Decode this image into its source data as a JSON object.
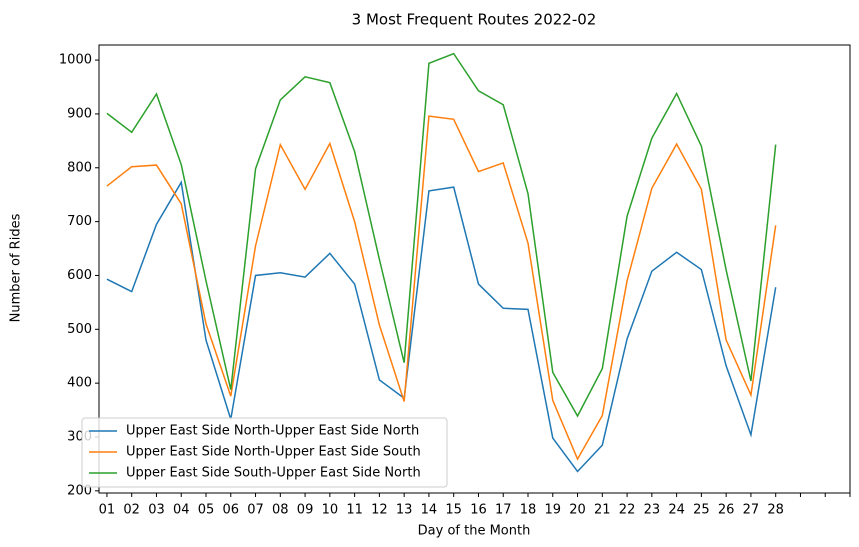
{
  "chart_data": {
    "type": "line",
    "title": "3 Most Frequent Routes 2022-02",
    "x_label": "Day of the Month",
    "y_label": "Number of Rides",
    "categories": [
      "01",
      "02",
      "03",
      "04",
      "05",
      "06",
      "07",
      "08",
      "09",
      "10",
      "11",
      "12",
      "13",
      "14",
      "15",
      "16",
      "17",
      "18",
      "19",
      "20",
      "21",
      "22",
      "23",
      "24",
      "25",
      "26",
      "27",
      "28",
      null,
      null,
      null
    ],
    "series": [
      {
        "name": "Upper East Side North-Upper East Side North",
        "color": "#1f77b4",
        "values": [
          593,
          570,
          695,
          773,
          480,
          333,
          600,
          605,
          597,
          641,
          584,
          406,
          372,
          757,
          764,
          584,
          539,
          537,
          298,
          236,
          285,
          482,
          608,
          643,
          611,
          432,
          304,
          578,
          null,
          null,
          null
        ]
      },
      {
        "name": "Upper East Side North-Upper East Side South",
        "color": "#ff7f0e",
        "values": [
          766,
          802,
          805,
          733,
          510,
          376,
          655,
          843,
          760,
          845,
          700,
          508,
          366,
          896,
          890,
          793,
          809,
          660,
          368,
          259,
          340,
          590,
          762,
          844,
          760,
          480,
          378,
          693,
          null,
          null,
          null
        ]
      },
      {
        "name": "Upper East Side South-Upper East Side North",
        "color": "#2ca02c",
        "values": [
          901,
          866,
          937,
          806,
          590,
          388,
          798,
          926,
          969,
          958,
          830,
          630,
          438,
          994,
          1012,
          943,
          917,
          752,
          420,
          339,
          427,
          710,
          855,
          938,
          840,
          610,
          404,
          843,
          null,
          null,
          null
        ]
      }
    ],
    "ylim": [
      196,
      1028
    ],
    "yticks": [
      200,
      300,
      400,
      500,
      600,
      700,
      800,
      900,
      1000
    ],
    "grid": false,
    "legend": "lower left"
  }
}
